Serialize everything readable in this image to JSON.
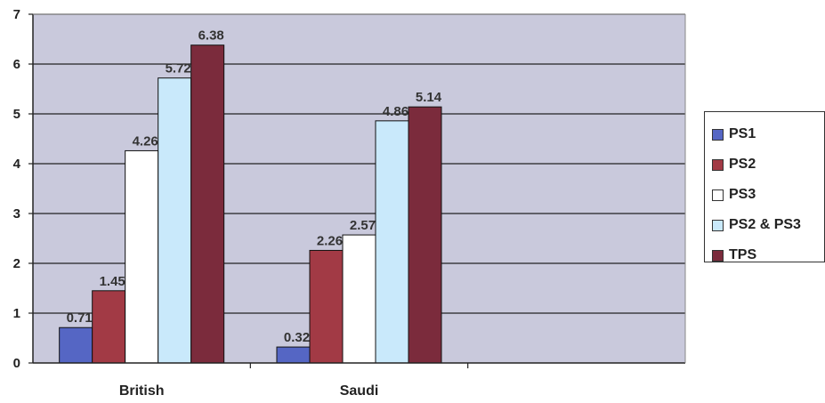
{
  "chart_data": {
    "type": "bar",
    "categories": [
      "British",
      "Saudi"
    ],
    "series": [
      {
        "name": "PS1",
        "values": [
          0.71,
          0.32
        ],
        "color": "#5566c4"
      },
      {
        "name": "PS2",
        "values": [
          1.45,
          2.26
        ],
        "color": "#a23a45"
      },
      {
        "name": "PS3",
        "values": [
          4.26,
          2.57
        ],
        "color": "#ffffff"
      },
      {
        "name": "PS2 & PS3",
        "values": [
          5.72,
          4.86
        ],
        "color": "#c9e9fb"
      },
      {
        "name": "TPS",
        "values": [
          6.38,
          5.14
        ],
        "color": "#7b2b3c"
      }
    ],
    "data_labels": [
      [
        "0.71",
        "0.32"
      ],
      [
        "1.45",
        "2.26"
      ],
      [
        "4.26",
        "2.57"
      ],
      [
        "5.72",
        "4.86"
      ],
      [
        "6.38",
        "5.14"
      ]
    ],
    "ylim": [
      0,
      7
    ],
    "yticks": [
      "0",
      "1",
      "2",
      "3",
      "4",
      "5",
      "6",
      "7"
    ],
    "grid": true,
    "legend": "right",
    "plot_background": "#c9c9dc",
    "title": "",
    "xlabel": "",
    "ylabel": ""
  }
}
